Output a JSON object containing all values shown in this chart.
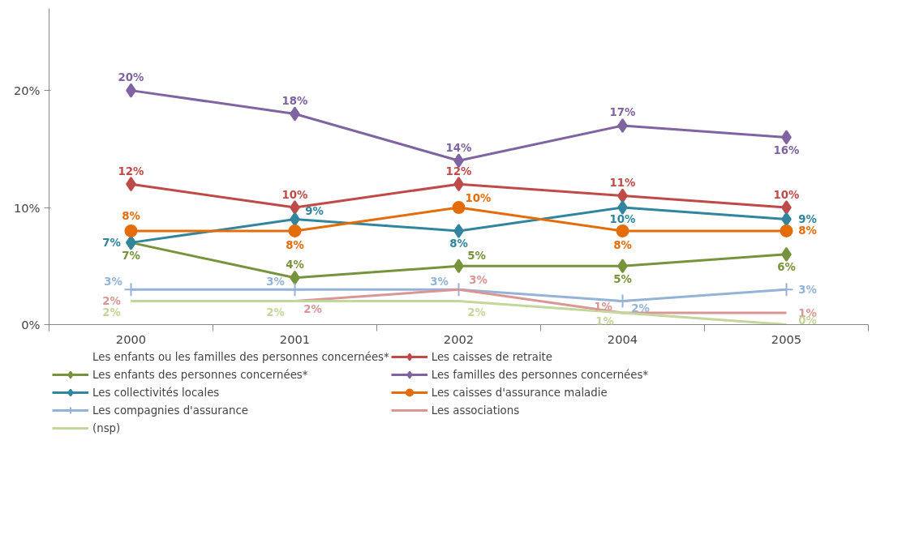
{
  "chart_data": {
    "type": "line",
    "categories": [
      "2000",
      "2001",
      "2002",
      "2004",
      "2005"
    ],
    "ylim": [
      0,
      27
    ],
    "yticks": [
      {
        "value": 0,
        "label": "0%"
      },
      {
        "value": 10,
        "label": "10%"
      },
      {
        "value": 20,
        "label": "20%"
      }
    ],
    "legend": "bottom",
    "line_style": "solid",
    "series": [
      {
        "name": "Les enfants ou les familles des personnes concernées*",
        "values": [
          null,
          null,
          null,
          null,
          null
        ],
        "marker": "none"
      },
      {
        "name": "Les caisses de retraite",
        "color": "#be4b48",
        "values": [
          12,
          10,
          12,
          11,
          10
        ],
        "marker": "diamond",
        "value_labels": [
          "12%",
          "10%",
          "12%",
          "11%",
          "10%"
        ]
      },
      {
        "name": "Les enfants des personnes concernées*",
        "color": "#77933c",
        "values": [
          7,
          4,
          5,
          5,
          6
        ],
        "marker": "diamond",
        "value_labels": [
          "7%",
          "4%",
          "5%",
          "5%",
          "6%"
        ]
      },
      {
        "name": "Les familles des personnes concernées*",
        "color": "#7f64a1",
        "values": [
          20,
          18,
          14,
          17,
          16
        ],
        "marker": "diamond",
        "value_labels": [
          "20%",
          "18%",
          "14%",
          "17%",
          "16%"
        ]
      },
      {
        "name": "Les collectivités locales",
        "color": "#31859c",
        "values": [
          7,
          9,
          8,
          10,
          9
        ],
        "marker": "diamond",
        "value_labels": [
          "7%",
          "9%",
          "8%",
          "10%",
          "9%"
        ]
      },
      {
        "name": "Les caisses d'assurance maladie",
        "color": "#e46c0a",
        "values": [
          8,
          8,
          10,
          8,
          8
        ],
        "marker": "circle",
        "value_labels": [
          "8%",
          "8%",
          "10%",
          "8%",
          "8%"
        ]
      },
      {
        "name": "Les compagnies d'assurance",
        "color": "#95b3d7",
        "values": [
          3,
          3,
          3,
          2,
          3
        ],
        "marker": "cross",
        "value_labels": [
          "3%",
          "3%",
          "3%",
          "2%",
          "3%"
        ]
      },
      {
        "name": "Les associations",
        "color": "#d99694",
        "values": [
          2,
          2,
          3,
          1,
          1
        ],
        "marker": "none",
        "value_labels": [
          "2%",
          "2%",
          "3%",
          "1%",
          "1%"
        ]
      },
      {
        "name": "(nsp)",
        "color": "#c3d69b",
        "values": [
          2,
          2,
          2,
          1,
          0
        ],
        "marker": "none",
        "value_labels": [
          "2%",
          "2%",
          "2%",
          "1%",
          "0%"
        ]
      }
    ]
  }
}
